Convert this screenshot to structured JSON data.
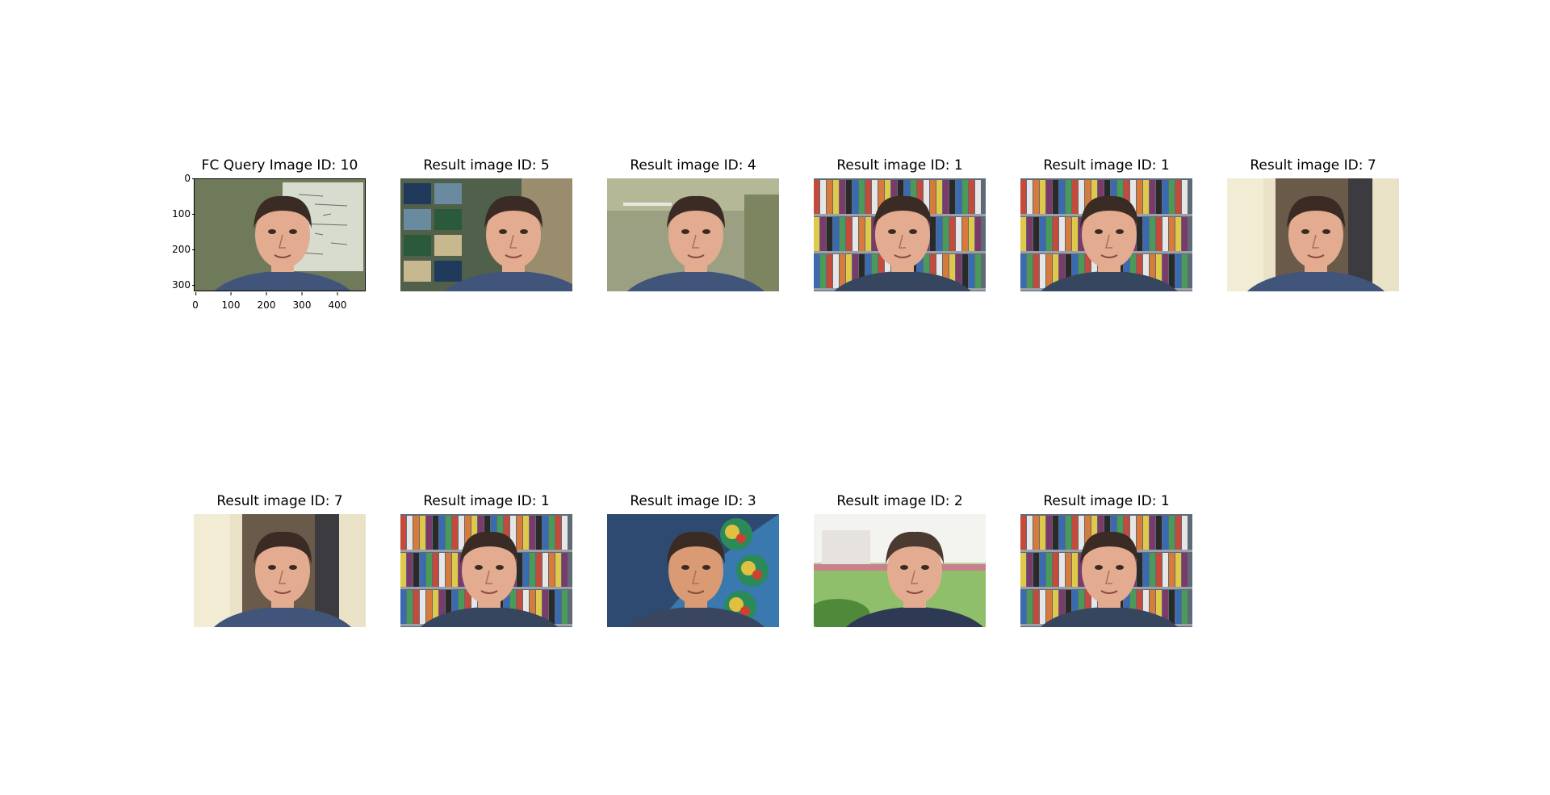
{
  "panels": [
    {
      "title": "FC Query Image ID: 10",
      "bg": "#6f7a5a",
      "wall": "#8a9378",
      "accent": "#d7dccf",
      "shirt": "#41557a",
      "variant": "whiteboard"
    },
    {
      "title": "Result image ID: 5",
      "bg": "#50604a",
      "wall": "#2b3140",
      "accent": "#9a8d6d",
      "shirt": "#41557a",
      "variant": "photos"
    },
    {
      "title": "Result image ID: 4",
      "bg": "#9ba082",
      "wall": "#b4b896",
      "accent": "#7d8560",
      "shirt": "#41557a",
      "variant": "cubicle"
    },
    {
      "title": "Result image ID: 1",
      "bg": "#5f6a78",
      "wall": "#3a4250",
      "accent": "#c44a3c",
      "shirt": "#36465f",
      "variant": "books"
    },
    {
      "title": "Result image ID: 1",
      "bg": "#5f6a78",
      "wall": "#3a4250",
      "accent": "#c44a3c",
      "shirt": "#36465f",
      "variant": "books"
    },
    {
      "title": "Result image ID: 7",
      "bg": "#e9e2c6",
      "wall": "#6a5a4a",
      "accent": "#3b3b40",
      "shirt": "#41557a",
      "variant": "door"
    },
    {
      "title": "Result image ID: 7",
      "bg": "#e9e2c6",
      "wall": "#6a5a4a",
      "accent": "#3b3b40",
      "shirt": "#41557a",
      "variant": "door"
    },
    {
      "title": "Result image ID: 1",
      "bg": "#5f6a78",
      "wall": "#3a4250",
      "accent": "#c44a3c",
      "shirt": "#36465f",
      "variant": "books"
    },
    {
      "title": "Result image ID: 3",
      "bg": "#2e4a70",
      "wall": "#1a2436",
      "accent": "#5ac0d8",
      "shirt": "#3a4660",
      "variant": "space"
    },
    {
      "title": "Result image ID: 2",
      "bg": "#bcd6a8",
      "wall": "#e6e3df",
      "accent": "#4f8a3a",
      "shirt": "#2e3a54",
      "variant": "outdoor"
    },
    {
      "title": "Result image ID: 1",
      "bg": "#5f6a78",
      "wall": "#3a4250",
      "accent": "#c44a3c",
      "shirt": "#36465f",
      "variant": "books"
    }
  ],
  "query_axes": {
    "yticks": [
      "0",
      "100",
      "200",
      "300"
    ],
    "xticks": [
      "0",
      "100",
      "200",
      "300",
      "400"
    ]
  }
}
